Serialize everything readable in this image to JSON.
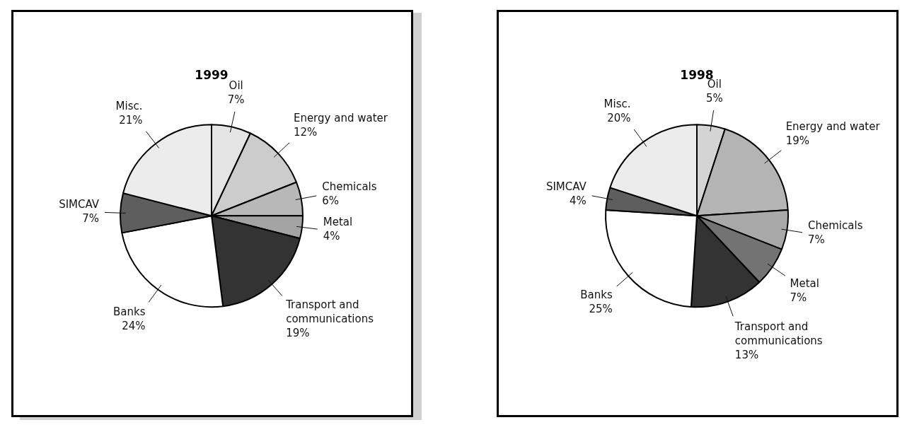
{
  "chart_data": [
    {
      "type": "pie",
      "title": "1999",
      "categories": [
        "Oil",
        "Energy and water",
        "Chemicals",
        "Metal",
        "Transport and communications",
        "Banks",
        "SIMCAV",
        "Misc."
      ],
      "values": [
        7,
        12,
        6,
        4,
        19,
        24,
        7,
        21
      ],
      "value_labels": [
        "7%",
        "12%",
        "6%",
        "4%",
        "19%",
        "24%",
        "7%",
        "21%"
      ],
      "colors": [
        "#e4e4e4",
        "#cccccc",
        "#b8b8b8",
        "#a4a4a4",
        "#333333",
        "#ffffff",
        "#5e5e5e",
        "#ececec"
      ]
    },
    {
      "type": "pie",
      "title": "1998",
      "categories": [
        "Oil",
        "Energy and water",
        "Chemicals",
        "Metal",
        "Transport and communications",
        "Banks",
        "SIMCAV",
        "Misc."
      ],
      "values": [
        5,
        19,
        7,
        7,
        13,
        25,
        4,
        20
      ],
      "value_labels": [
        "5%",
        "19%",
        "7%",
        "7%",
        "13%",
        "25%",
        "4%",
        "20%"
      ],
      "colors": [
        "#d4d4d4",
        "#b4b4b4",
        "#a8a8a8",
        "#737373",
        "#333333",
        "#ffffff",
        "#5e5e5e",
        "#ececec"
      ]
    }
  ]
}
